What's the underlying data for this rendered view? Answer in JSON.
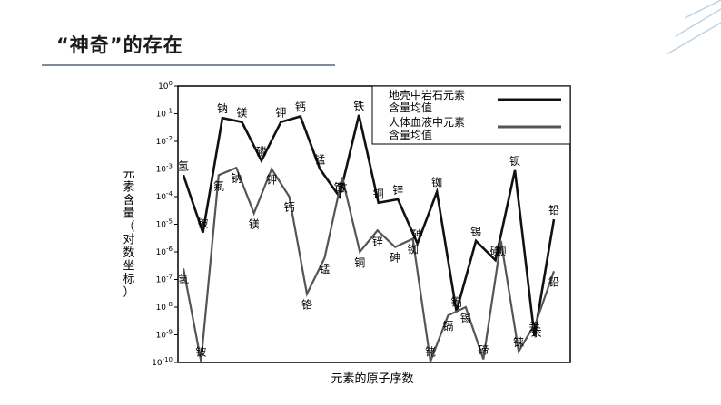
{
  "slide": {
    "title": "“神奇”的存在"
  },
  "chart_data": {
    "type": "line",
    "xlabel": "元素的原子序数",
    "ylabel": "元素含量（对数坐标）",
    "yscale": "log",
    "ylim": [
      1e-10,
      1
    ],
    "yticks": [
      {
        "base": "10",
        "exp": "0"
      },
      {
        "base": "10",
        "exp": "-1"
      },
      {
        "base": "10",
        "exp": "-2"
      },
      {
        "base": "10",
        "exp": "-3"
      },
      {
        "base": "10",
        "exp": "-4"
      },
      {
        "base": "10",
        "exp": "-5"
      },
      {
        "base": "10",
        "exp": "-6"
      },
      {
        "base": "10",
        "exp": "-7"
      },
      {
        "base": "10",
        "exp": "-8"
      },
      {
        "base": "10",
        "exp": "-9"
      },
      {
        "base": "10",
        "exp": "-10"
      }
    ],
    "legend_position": "top-right",
    "series": [
      {
        "name": "地壳中岩石元素含量均值",
        "color": "#111111",
        "points": [
          {
            "label": "氢",
            "value": 0.0006
          },
          {
            "label": "铍",
            "value": 5e-06
          },
          {
            "label": "钠",
            "value": 0.07
          },
          {
            "label": "镁",
            "value": 0.05
          },
          {
            "label": "磷",
            "value": 0.002
          },
          {
            "label": "钾",
            "value": 0.05
          },
          {
            "label": "钙",
            "value": 0.08
          },
          {
            "label": "锰",
            "value": 0.001
          },
          {
            "label": "铬",
            "value": 0.0001
          },
          {
            "label": "铁",
            "value": 0.09
          },
          {
            "label": "铜",
            "value": 6e-05
          },
          {
            "label": "锌",
            "value": 8e-05
          },
          {
            "label": "砷",
            "value": 2e-06
          },
          {
            "label": "铷",
            "value": 0.00015
          },
          {
            "label": "镉",
            "value": 7e-09
          },
          {
            "label": "锡",
            "value": 2.5e-06
          },
          {
            "label": "碘",
            "value": 5e-07
          },
          {
            "label": "钡",
            "value": 0.0009
          },
          {
            "label": "汞",
            "value": 9e-10
          },
          {
            "label": "铅",
            "value": 1.5e-05
          }
        ]
      },
      {
        "name": "人体血液中元素含量均值",
        "color": "#555555",
        "points": [
          {
            "label": "氢",
            "value": 2.5e-07
          },
          {
            "label": "铍",
            "value": 1.1e-10
          },
          {
            "label": "氟",
            "value": 0.0006
          },
          {
            "label": "钠",
            "value": 0.0011
          },
          {
            "label": "镁",
            "value": 2.5e-05
          },
          {
            "label": "钾",
            "value": 0.001
          },
          {
            "label": "钙",
            "value": 0.0001
          },
          {
            "label": "铬",
            "value": 3e-08
          },
          {
            "label": "锰",
            "value": 6e-07
          },
          {
            "label": "铁",
            "value": 0.0005
          },
          {
            "label": "铜",
            "value": 1e-06
          },
          {
            "label": "锌",
            "value": 6e-06
          },
          {
            "label": "砷",
            "value": 1.5e-06
          },
          {
            "label": "铷",
            "value": 3e-06
          },
          {
            "label": "铑",
            "value": 1.1e-10
          },
          {
            "label": "镉",
            "value": 5e-09
          },
          {
            "label": "锡",
            "value": 1e-08
          },
          {
            "label": "碲",
            "value": 1.3e-10
          },
          {
            "label": "钡",
            "value": 2.5e-06
          },
          {
            "label": "铼",
            "value": 2.5e-10
          },
          {
            "label": "汞",
            "value": 3e-09
          },
          {
            "label": "铅",
            "value": 2e-07
          }
        ]
      }
    ],
    "annotations": {
      "series_0": [
        "钠",
        "镁",
        "钾",
        "钙",
        "铁",
        "锰",
        "铬",
        "铜",
        "锌",
        "砷",
        "铷",
        "锡",
        "碘",
        "钡",
        "铅",
        "汞",
        "铍"
      ],
      "series_1": [
        "氢",
        "氟",
        "钠",
        "磷",
        "钾",
        "镁",
        "钙",
        "铁",
        "锰",
        "铬",
        "铜",
        "锌",
        "砷",
        "铷",
        "镉",
        "锡",
        "碲",
        "钡",
        "铼",
        "汞",
        "铅",
        "锗",
        "铍",
        "氢"
      ]
    }
  }
}
